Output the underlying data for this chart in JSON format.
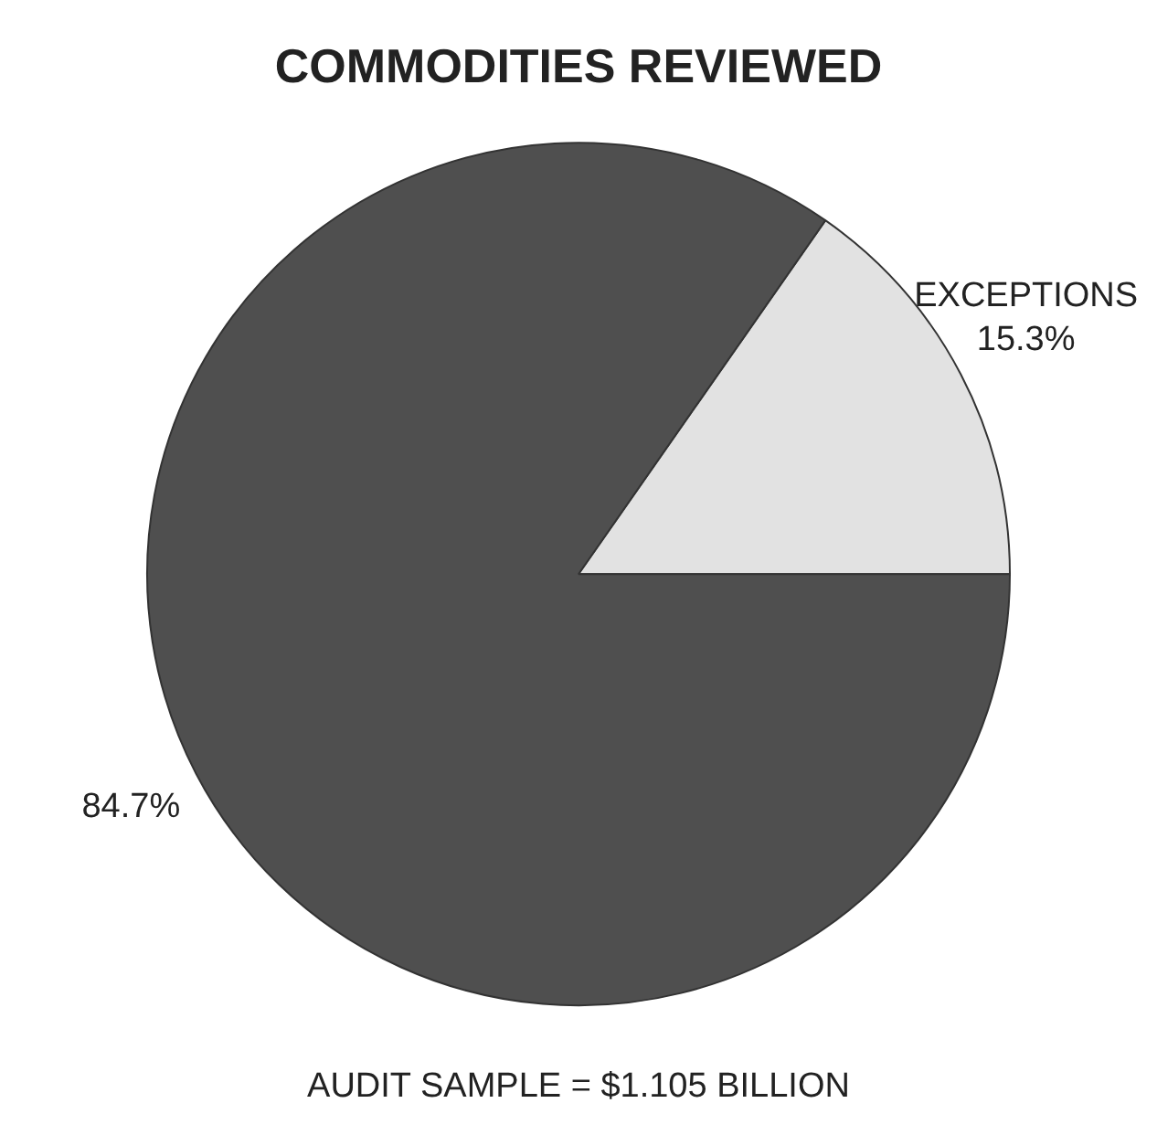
{
  "chart_data": {
    "type": "pie",
    "title": "COMMODITIES REVIEWED",
    "categories": [
      "EXCEPTIONS",
      null
    ],
    "values": [
      15.3,
      84.7
    ],
    "value_labels": [
      "15.3%",
      "84.7%"
    ],
    "colors": [
      "#e2e2e2",
      "#4f4f4f"
    ],
    "annotations": [
      "AUDIT SAMPLE = $1.105 BILLION"
    ],
    "legend": false
  }
}
